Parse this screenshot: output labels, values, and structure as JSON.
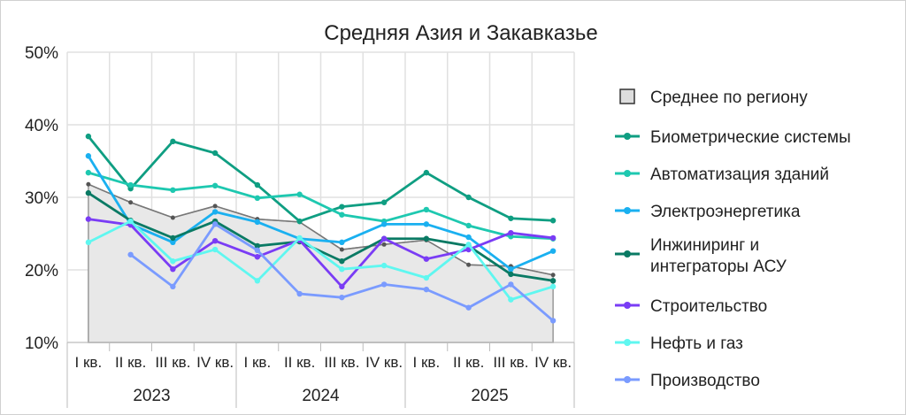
{
  "chart_data": {
    "type": "line",
    "title": "Средняя Азия и Закавказье",
    "ylim": [
      10,
      50
    ],
    "yticks": [
      "10%",
      "20%",
      "30%",
      "40%",
      "50%"
    ],
    "categories": [
      "I кв.",
      "II кв.",
      "III кв.",
      "IV кв.",
      "I кв.",
      "II кв.",
      "III кв.",
      "IV кв.",
      "I кв.",
      "II кв.",
      "III кв.",
      "IV кв."
    ],
    "years": [
      "2023",
      "2024",
      "2025"
    ],
    "legend_position": "right",
    "series": [
      {
        "name": "Среднее по региону",
        "color": "#777777",
        "area": true,
        "values": [
          31.8,
          29.3,
          27.2,
          28.8,
          27.0,
          26.6,
          22.8,
          23.5,
          24.1,
          20.7,
          20.5,
          19.3
        ]
      },
      {
        "name": "Биометрические системы",
        "color": "#0f9e82",
        "values": [
          38.4,
          31.2,
          37.7,
          36.1,
          31.7,
          26.7,
          28.7,
          29.3,
          33.4,
          30.0,
          27.1,
          26.8
        ]
      },
      {
        "name": "Автоматизация зданий",
        "color": "#1ec8b0",
        "values": [
          33.4,
          31.7,
          31.0,
          31.6,
          29.9,
          30.4,
          27.6,
          26.7,
          28.3,
          26.1,
          24.6,
          24.3
        ]
      },
      {
        "name": "Электроэнергетика",
        "color": "#1ab0f0",
        "values": [
          35.7,
          26.3,
          23.8,
          28.0,
          26.6,
          24.3,
          23.8,
          26.3,
          26.3,
          24.5,
          20.1,
          22.6
        ]
      },
      {
        "name": "Инжиниринг и интеграторы АСУ",
        "color": "#0a7a64",
        "values": [
          30.6,
          26.8,
          24.4,
          26.7,
          23.3,
          23.9,
          21.2,
          24.3,
          24.3,
          23.3,
          19.4,
          18.5
        ]
      },
      {
        "name": "Строительство",
        "color": "#7a3cf5",
        "values": [
          27.0,
          26.2,
          20.1,
          24.0,
          21.8,
          24.1,
          17.7,
          24.3,
          21.5,
          22.8,
          25.1,
          24.4
        ]
      },
      {
        "name": "Нефть и газ",
        "color": "#5ff7f0",
        "values": [
          23.8,
          26.7,
          21.2,
          22.8,
          18.5,
          24.4,
          20.1,
          20.6,
          18.9,
          23.5,
          15.9,
          17.7
        ]
      },
      {
        "name": "Производство",
        "color": "#7a9bff",
        "values": [
          null,
          22.1,
          17.7,
          26.3,
          22.7,
          16.7,
          16.2,
          18.0,
          17.3,
          14.8,
          18.0,
          13.0
        ]
      }
    ]
  }
}
